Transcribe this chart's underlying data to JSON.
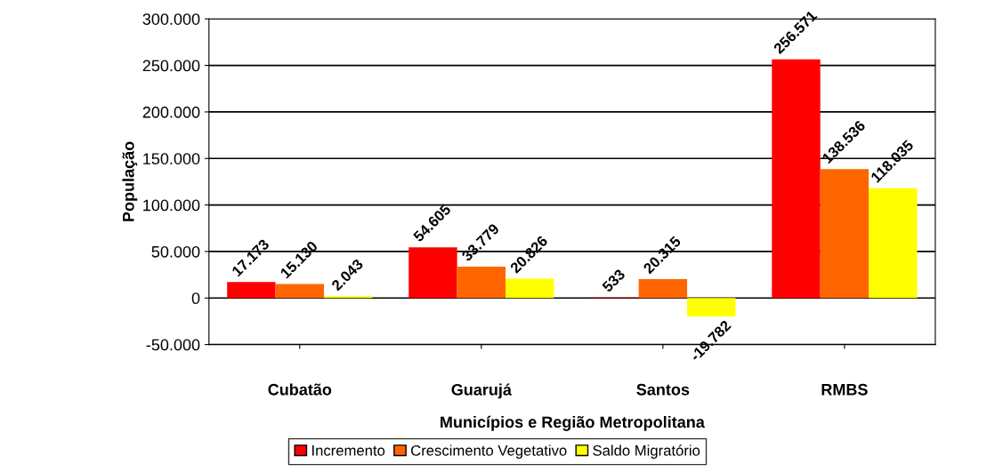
{
  "chart_data": {
    "type": "bar",
    "xlabel": "Municípios e Região Metropolitana",
    "ylabel": "População",
    "categories": [
      "Cubatão",
      "Guarujá",
      "Santos",
      "RMBS"
    ],
    "series": [
      {
        "name": "Incremento",
        "color": "#ff0000",
        "values": [
          17173,
          54605,
          533,
          256571
        ],
        "value_labels": [
          "17.173",
          "54.605",
          "533",
          "256.571"
        ]
      },
      {
        "name": "Crescimento Vegetativo",
        "color": "#ff6600",
        "values": [
          15130,
          33779,
          20315,
          138536
        ],
        "value_labels": [
          "15.130",
          "33.779",
          "20.315",
          "138.536"
        ]
      },
      {
        "name": "Saldo Migratório",
        "color": "#ffff00",
        "values": [
          2043,
          20826,
          -19782,
          118035
        ],
        "value_labels": [
          "2.043",
          "20.826",
          "-19.782",
          "118.035"
        ]
      }
    ],
    "ylim": [
      -50000,
      300000
    ],
    "yticks": [
      {
        "value": -50000,
        "label": "-50.000"
      },
      0,
      {
        "value": 50000,
        "label": "50.000"
      },
      {
        "value": 100000,
        "label": "100.000"
      },
      {
        "value": 150000,
        "label": "150.000"
      },
      {
        "value": 200000,
        "label": "200.000"
      },
      {
        "value": 250000,
        "label": "250.000"
      },
      {
        "value": 300000,
        "label": "300.000"
      }
    ],
    "grid": "y",
    "legend": "bottom"
  }
}
